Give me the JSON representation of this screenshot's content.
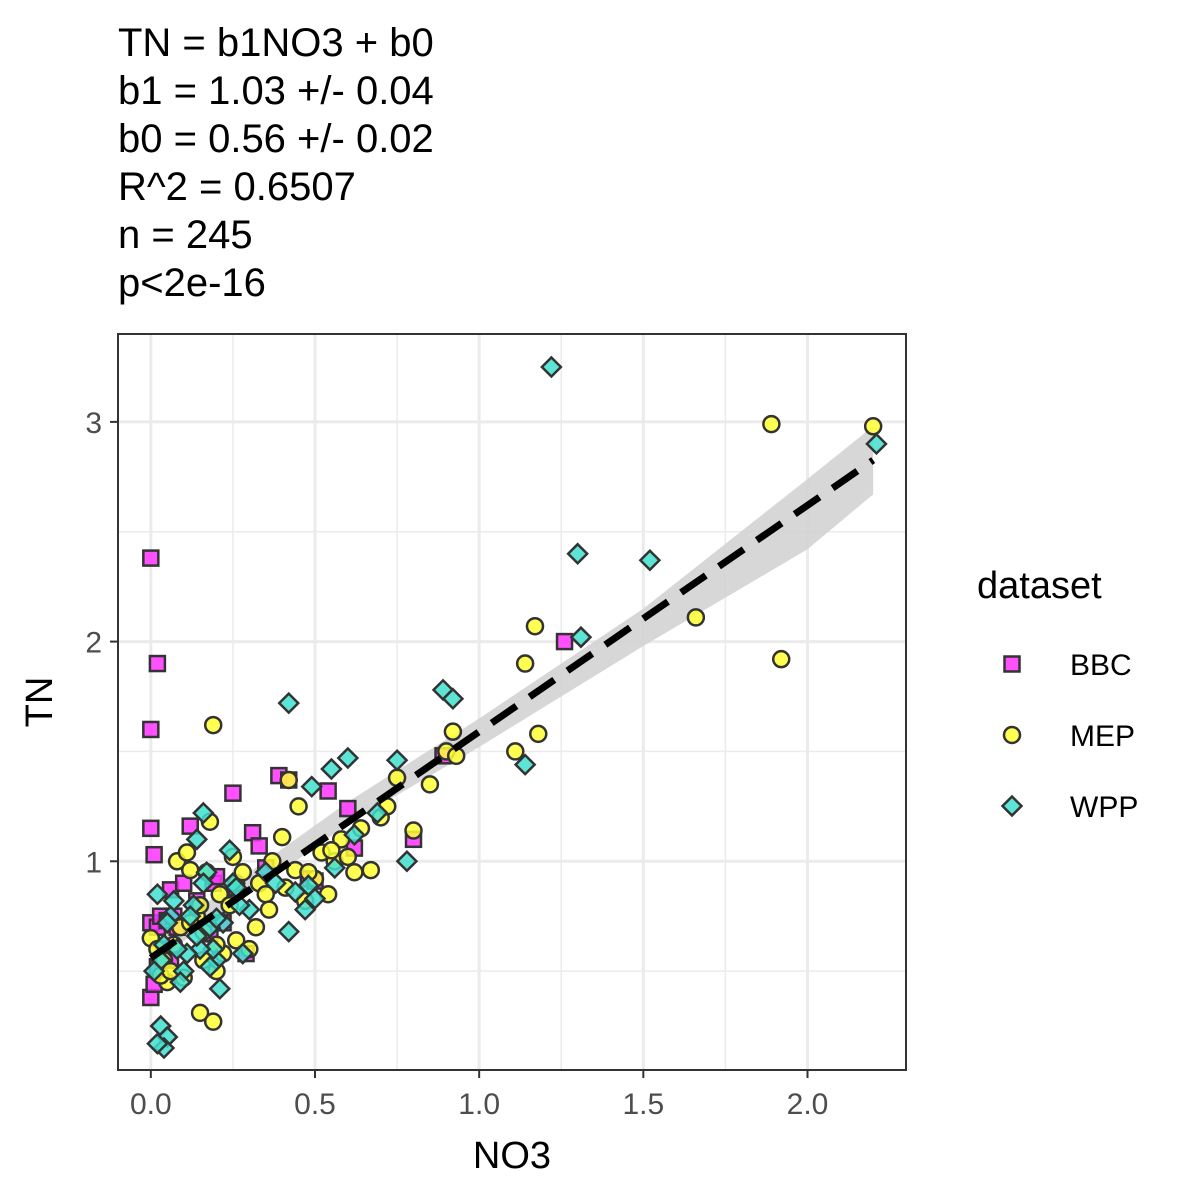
{
  "stats": [
    "TN = b1NO3 + b0",
    "b1 = 1.03 +/- 0.04",
    "b0 = 0.56 +/- 0.02",
    "R^2 = 0.6507",
    "n = 245",
    "p<2e-16"
  ],
  "legend": {
    "title": "dataset",
    "entries": [
      {
        "label": "BBC",
        "shape": "square",
        "color": "#ff33ff"
      },
      {
        "label": "MEP",
        "shape": "circle",
        "color": "#ffff33"
      },
      {
        "label": "WPP",
        "shape": "diamond",
        "color": "#40e0d0"
      }
    ]
  },
  "colors": {
    "panel_border": "#333333",
    "grid": "#ebebeb",
    "fit_line": "#000000",
    "ribbon": "#d3d3d3",
    "marker_outline": "#333333"
  },
  "chart_data": {
    "type": "scatter",
    "xlabel": "NO3",
    "ylabel": "TN",
    "xlim": [
      -0.1,
      2.3
    ],
    "ylim": [
      0.05,
      3.4
    ],
    "xticks": [
      "0.0",
      "0.5",
      "1.0",
      "1.5",
      "2.0"
    ],
    "yticks": [
      "1",
      "2",
      "3"
    ],
    "grid": true,
    "legend_position": "right",
    "fit": {
      "slope": 1.03,
      "intercept": 0.56,
      "x_range": [
        0.0,
        2.2
      ],
      "ci_lower": [
        [
          0.0,
          0.53
        ],
        [
          0.6,
          1.17
        ],
        [
          1.0,
          1.52
        ],
        [
          1.5,
          1.98
        ],
        [
          2.0,
          2.42
        ],
        [
          2.2,
          2.67
        ]
      ],
      "ci_upper": [
        [
          0.0,
          0.63
        ],
        [
          0.6,
          1.27
        ],
        [
          1.0,
          1.65
        ],
        [
          1.5,
          2.15
        ],
        [
          2.0,
          2.74
        ],
        [
          2.2,
          2.98
        ]
      ]
    },
    "series": [
      {
        "name": "BBC",
        "marker": "square",
        "x": [
          0.0,
          0.02,
          0.0,
          0.0,
          0.01,
          0.0,
          0.02,
          0.03,
          0.05,
          0.06,
          0.07,
          0.08,
          0.1,
          0.12,
          0.14,
          0.18,
          0.19,
          0.2,
          0.22,
          0.25,
          0.26,
          0.29,
          0.31,
          0.33,
          0.35,
          0.39,
          0.42,
          0.48,
          0.5,
          0.54,
          0.6,
          0.62,
          0.8,
          0.89,
          1.26,
          0.0,
          0.01,
          0.04,
          0.06,
          0.02
        ],
        "y": [
          2.38,
          1.9,
          1.6,
          1.15,
          1.03,
          0.72,
          0.7,
          0.75,
          0.73,
          0.87,
          0.75,
          0.7,
          0.9,
          1.16,
          0.82,
          0.67,
          0.9,
          0.93,
          0.72,
          1.31,
          0.88,
          0.58,
          1.13,
          1.07,
          0.97,
          1.39,
          1.37,
          0.92,
          0.91,
          1.32,
          1.24,
          1.06,
          1.1,
          1.48,
          2.0,
          0.38,
          0.44,
          0.6,
          0.55,
          0.52
        ]
      },
      {
        "name": "MEP",
        "marker": "circle",
        "x": [
          0.0,
          0.02,
          0.04,
          0.05,
          0.07,
          0.08,
          0.09,
          0.1,
          0.11,
          0.12,
          0.14,
          0.15,
          0.16,
          0.17,
          0.18,
          0.19,
          0.2,
          0.21,
          0.22,
          0.24,
          0.25,
          0.26,
          0.28,
          0.3,
          0.32,
          0.33,
          0.35,
          0.37,
          0.4,
          0.42,
          0.44,
          0.45,
          0.47,
          0.5,
          0.52,
          0.54,
          0.56,
          0.58,
          0.6,
          0.62,
          0.64,
          0.67,
          0.7,
          0.72,
          0.75,
          0.8,
          0.85,
          0.9,
          0.92,
          0.93,
          1.11,
          1.14,
          1.17,
          1.18,
          1.66,
          1.89,
          1.92,
          2.2,
          0.15,
          0.19,
          0.2,
          0.03,
          0.06,
          0.12,
          0.16,
          0.26,
          0.36,
          0.41,
          0.48,
          0.55
        ],
        "y": [
          0.65,
          0.6,
          0.55,
          0.45,
          0.62,
          1.0,
          0.7,
          0.47,
          1.04,
          0.96,
          0.75,
          0.8,
          0.55,
          0.95,
          1.18,
          1.62,
          0.5,
          0.85,
          0.58,
          0.8,
          1.02,
          0.9,
          0.95,
          0.6,
          0.7,
          0.9,
          0.85,
          1.0,
          1.11,
          1.37,
          0.96,
          1.25,
          0.82,
          0.92,
          1.04,
          0.85,
          1.0,
          1.1,
          1.02,
          0.95,
          1.15,
          0.96,
          1.2,
          1.25,
          1.38,
          1.14,
          1.35,
          1.5,
          1.59,
          1.48,
          1.5,
          1.9,
          2.07,
          1.58,
          2.11,
          2.99,
          1.92,
          2.98,
          0.31,
          0.27,
          0.62,
          0.48,
          0.5,
          0.72,
          0.68,
          0.64,
          0.78,
          0.88,
          0.95,
          1.05
        ]
      },
      {
        "name": "WPP",
        "marker": "diamond",
        "x": [
          1.22,
          2.21,
          1.3,
          1.52,
          1.31,
          0.89,
          0.92,
          1.14,
          0.42,
          0.6,
          0.55,
          0.75,
          0.69,
          0.78,
          0.49,
          0.62,
          0.56,
          0.47,
          0.5,
          0.48,
          0.44,
          0.42,
          0.38,
          0.35,
          0.3,
          0.28,
          0.27,
          0.25,
          0.22,
          0.21,
          0.2,
          0.19,
          0.18,
          0.17,
          0.16,
          0.15,
          0.14,
          0.13,
          0.12,
          0.11,
          0.1,
          0.09,
          0.08,
          0.07,
          0.06,
          0.05,
          0.04,
          0.03,
          0.02,
          0.01,
          0.03,
          0.05,
          0.04,
          0.02,
          0.14,
          0.16,
          0.18,
          0.2,
          0.24,
          0.26
        ],
        "y": [
          3.25,
          2.9,
          2.4,
          2.37,
          2.02,
          1.78,
          1.74,
          1.44,
          1.72,
          1.47,
          1.42,
          1.46,
          1.22,
          1.0,
          1.34,
          1.12,
          0.97,
          0.78,
          0.83,
          0.89,
          0.86,
          0.68,
          0.9,
          0.95,
          0.78,
          0.58,
          0.8,
          0.9,
          0.72,
          0.42,
          0.55,
          0.6,
          0.7,
          0.95,
          1.22,
          0.6,
          1.1,
          0.8,
          0.75,
          0.58,
          0.5,
          0.45,
          0.6,
          0.82,
          0.75,
          0.72,
          0.62,
          0.55,
          0.85,
          0.5,
          0.25,
          0.2,
          0.15,
          0.17,
          0.66,
          0.9,
          0.52,
          0.74,
          1.05,
          0.88
        ]
      }
    ]
  }
}
